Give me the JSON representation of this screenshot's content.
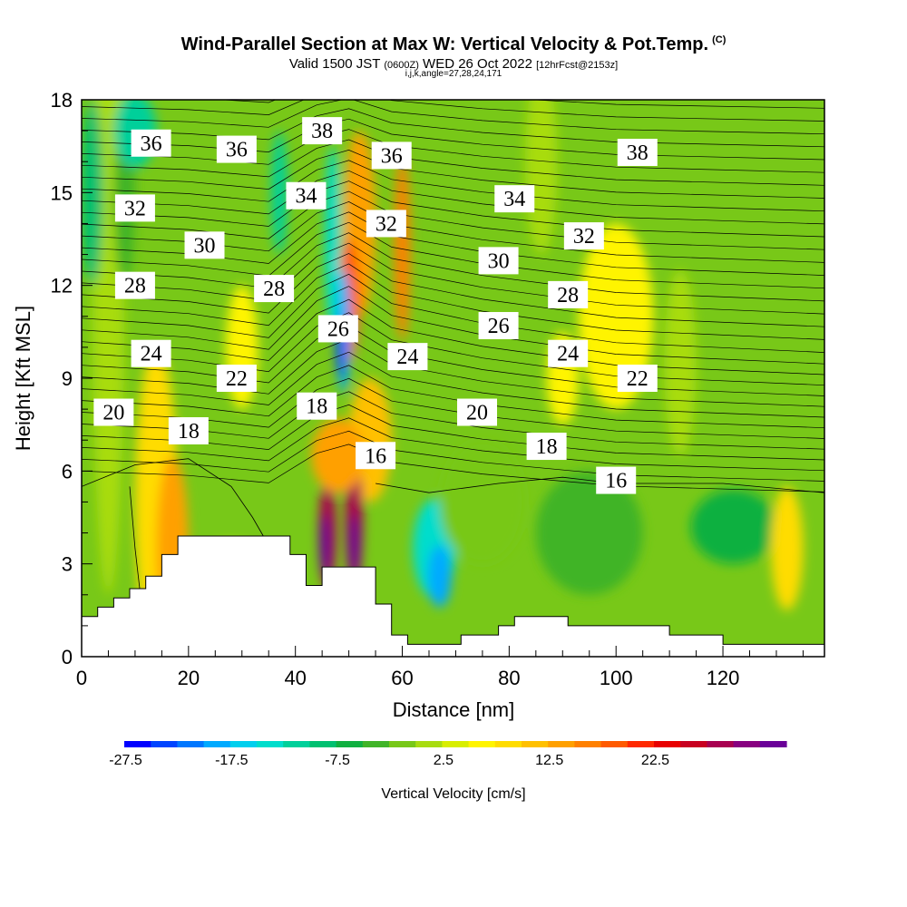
{
  "header": {
    "title": "Wind-Parallel Section at Max W: Vertical Velocity & Pot.Temp.",
    "copyright": "(C)",
    "valid_main": "Valid 1500 JST",
    "valid_utc": "(0600Z)",
    "valid_date": "WED 26 Oct 2022",
    "forecast": "[12hrFcst@2153z]",
    "params": "i,j,k,angle=27,28,24,171"
  },
  "chart_data": {
    "type": "heatmap",
    "xlabel": "Distance [nm]",
    "ylabel": "Height [Kft MSL]",
    "xlim": [
      0,
      139
    ],
    "ylim": [
      0,
      18
    ],
    "x_ticks": [
      "0",
      "20",
      "40",
      "60",
      "80",
      "100",
      "120"
    ],
    "y_ticks": [
      "0",
      "3",
      "6",
      "9",
      "12",
      "15",
      "18"
    ],
    "colorbar": {
      "label": "Vertical Velocity [cm/s]",
      "tick_labels": [
        "-27.5",
        "-17.5",
        "-7.5",
        "2.5",
        "12.5",
        "22.5"
      ],
      "colors": [
        "#0000ff",
        "#0044ff",
        "#0077ff",
        "#00aaff",
        "#00cfee",
        "#00ddcc",
        "#00d09a",
        "#00c070",
        "#10b040",
        "#40b428",
        "#78c818",
        "#a8dc10",
        "#d8ee00",
        "#fff400",
        "#ffdc00",
        "#ffc000",
        "#ffa000",
        "#ff8000",
        "#ff5a00",
        "#ff2800",
        "#e80000",
        "#c80020",
        "#a80050",
        "#880080",
        "#6a0098"
      ]
    },
    "terrain": [
      [
        0,
        1.3
      ],
      [
        3,
        1.3
      ],
      [
        3,
        1.6
      ],
      [
        6,
        1.6
      ],
      [
        6,
        1.9
      ],
      [
        9,
        1.9
      ],
      [
        9,
        2.2
      ],
      [
        12,
        2.2
      ],
      [
        12,
        2.6
      ],
      [
        15,
        2.6
      ],
      [
        15,
        3.3
      ],
      [
        18,
        3.3
      ],
      [
        18,
        3.9
      ],
      [
        39,
        3.9
      ],
      [
        39,
        3.3
      ],
      [
        42,
        3.3
      ],
      [
        42,
        2.3
      ],
      [
        45,
        2.3
      ],
      [
        45,
        2.9
      ],
      [
        55,
        2.9
      ],
      [
        55,
        1.7
      ],
      [
        58,
        1.7
      ],
      [
        58,
        0.7
      ],
      [
        61,
        0.7
      ],
      [
        61,
        0.4
      ],
      [
        71,
        0.4
      ],
      [
        71,
        0.7
      ],
      [
        78,
        0.7
      ],
      [
        78,
        1.0
      ],
      [
        81,
        1.0
      ],
      [
        81,
        1.3
      ],
      [
        91,
        1.3
      ],
      [
        91,
        1.0
      ],
      [
        110,
        1.0
      ],
      [
        110,
        0.7
      ],
      [
        120,
        0.7
      ],
      [
        120,
        0.4
      ],
      [
        139,
        0.4
      ]
    ],
    "theta_contour_labels": [
      {
        "value": "36",
        "x": 13,
        "y": 16.6
      },
      {
        "value": "36",
        "x": 29,
        "y": 16.4
      },
      {
        "value": "38",
        "x": 45,
        "y": 17.0
      },
      {
        "value": "36",
        "x": 58,
        "y": 16.2
      },
      {
        "value": "38",
        "x": 104,
        "y": 16.3
      },
      {
        "value": "32",
        "x": 10,
        "y": 14.5
      },
      {
        "value": "34",
        "x": 42,
        "y": 14.9
      },
      {
        "value": "32",
        "x": 57,
        "y": 14.0
      },
      {
        "value": "34",
        "x": 81,
        "y": 14.8
      },
      {
        "value": "32",
        "x": 94,
        "y": 13.6
      },
      {
        "value": "30",
        "x": 23,
        "y": 13.3
      },
      {
        "value": "30",
        "x": 78,
        "y": 12.8
      },
      {
        "value": "28",
        "x": 10,
        "y": 12.0
      },
      {
        "value": "28",
        "x": 36,
        "y": 11.9
      },
      {
        "value": "28",
        "x": 91,
        "y": 11.7
      },
      {
        "value": "26",
        "x": 48,
        "y": 10.6
      },
      {
        "value": "26",
        "x": 78,
        "y": 10.7
      },
      {
        "value": "24",
        "x": 13,
        "y": 9.8
      },
      {
        "value": "24",
        "x": 61,
        "y": 9.7
      },
      {
        "value": "24",
        "x": 91,
        "y": 9.8
      },
      {
        "value": "22",
        "x": 29,
        "y": 9.0
      },
      {
        "value": "22",
        "x": 104,
        "y": 9.0
      },
      {
        "value": "20",
        "x": 6,
        "y": 7.9
      },
      {
        "value": "20",
        "x": 74,
        "y": 7.9
      },
      {
        "value": "18",
        "x": 20,
        "y": 7.3
      },
      {
        "value": "18",
        "x": 44,
        "y": 8.1
      },
      {
        "value": "18",
        "x": 87,
        "y": 6.8
      },
      {
        "value": "16",
        "x": 55,
        "y": 6.5
      },
      {
        "value": "16",
        "x": 100,
        "y": 5.7
      }
    ]
  }
}
